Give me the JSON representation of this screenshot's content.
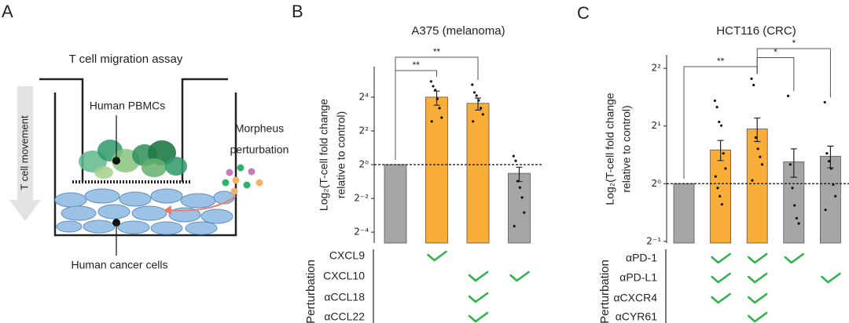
{
  "panels": [
    "A",
    "B",
    "C"
  ],
  "diagram": {
    "title": "T cell migration assay",
    "movement": "T cell movement",
    "top_cells": "Human PBMCs",
    "bottom_cells": "Human cancer cells",
    "perturbation": [
      "Morpheus",
      "perturbation"
    ]
  },
  "chart_data": [
    {
      "type": "bar",
      "title": "A375 (melanoma)",
      "ylabel": [
        "Log₂(T-cell fold change",
        "relative to control)"
      ],
      "categories": [
        null,
        null,
        null,
        null
      ],
      "values": [
        1,
        16,
        12.4,
        0.7
      ],
      "errors": [
        null,
        4.5,
        3,
        0.2
      ],
      "colors": [
        "#a6a6a6",
        "#f9ae3a",
        "#f9ae3a",
        "#a6a6a6"
      ],
      "points": [
        [],
        [
          30.5,
          25.1,
          21.4,
          14.9,
          10.2,
          6.9,
          5.9
        ],
        [
          26.7,
          19.4,
          17.0,
          14.0,
          10.2,
          7.9,
          5.9
        ],
        [
          1.42,
          1.17,
          0.51,
          0.39,
          0.26,
          0.14,
          0.08
        ]
      ],
      "log_scale": true,
      "ylim": [
        0.04,
        56
      ],
      "yticks": [
        {
          "value": 0.0625,
          "label": "2⁻⁴"
        },
        {
          "value": 0.25,
          "label": "2⁻²"
        },
        {
          "value": 1,
          "label": "2⁰"
        },
        {
          "value": 4,
          "label": "2²"
        },
        {
          "value": 16,
          "label": "2⁴"
        }
      ],
      "hline": 1,
      "significance": [
        {
          "from": 0,
          "to": 1,
          "label": "**"
        },
        {
          "from": 0,
          "to": 2,
          "label": "**"
        }
      ],
      "perturbation": {
        "label": "Perturbation",
        "rows": [
          {
            "name": "CXCL9",
            "checks": [
              false,
              true,
              false,
              false
            ]
          },
          {
            "name": "CXCL10",
            "checks": [
              false,
              false,
              true,
              true
            ]
          },
          {
            "name": "αCCL18",
            "checks": [
              false,
              false,
              true,
              false
            ]
          },
          {
            "name": "αCCL22",
            "checks": [
              false,
              false,
              true,
              false
            ]
          }
        ]
      }
    },
    {
      "type": "bar",
      "title": "HCT116 (CRC)",
      "ylabel": [
        "Log₂(T-cell fold change",
        "relative to control)"
      ],
      "categories": [
        null,
        null,
        null,
        null,
        null
      ],
      "values": [
        1,
        1.5,
        1.93,
        1.3,
        1.39
      ],
      "errors": [
        null,
        0.18,
        0.27,
        0.22,
        0.18
      ],
      "colors": [
        "#a6a6a6",
        "#f9ae3a",
        "#f9ae3a",
        "#a6a6a6",
        "#a6a6a6"
      ],
      "points": [
        [],
        [
          2.71,
          2.51,
          2.1,
          2.01,
          1.44,
          1.2,
          1.09,
          0.95,
          0.86,
          0.78
        ],
        [
          3.53,
          3.27,
          1.74,
          1.52,
          1.38,
          1.26,
          1.04
        ],
        [
          2.87,
          1.26,
          0.95,
          0.77,
          0.66,
          0.62
        ],
        [
          2.66,
          1.44,
          1.31,
          1.2,
          0.99,
          0.86,
          0.73
        ]
      ],
      "log_scale": true,
      "ylim": [
        0.49,
        4.7
      ],
      "yticks": [
        {
          "value": 0.5,
          "label": "2⁻¹"
        },
        {
          "value": 1,
          "label": "2⁰"
        },
        {
          "value": 2,
          "label": "2¹"
        },
        {
          "value": 4,
          "label": "2²"
        }
      ],
      "hline": 1,
      "significance": [
        {
          "from": 0,
          "to": 2,
          "label": "**"
        },
        {
          "from": 2,
          "to": 3,
          "label": "*"
        },
        {
          "from": 2,
          "to": 4,
          "label": "*"
        }
      ],
      "perturbation": {
        "label": "Perturbation",
        "rows": [
          {
            "name": "αPD-1",
            "checks": [
              false,
              true,
              true,
              true,
              false
            ]
          },
          {
            "name": "αPD-L1",
            "checks": [
              false,
              true,
              true,
              false,
              true
            ]
          },
          {
            "name": "αCXCR4",
            "checks": [
              false,
              true,
              true,
              false,
              false
            ]
          },
          {
            "name": "αCYR61",
            "checks": [
              false,
              false,
              true,
              false,
              false
            ]
          }
        ]
      }
    }
  ]
}
